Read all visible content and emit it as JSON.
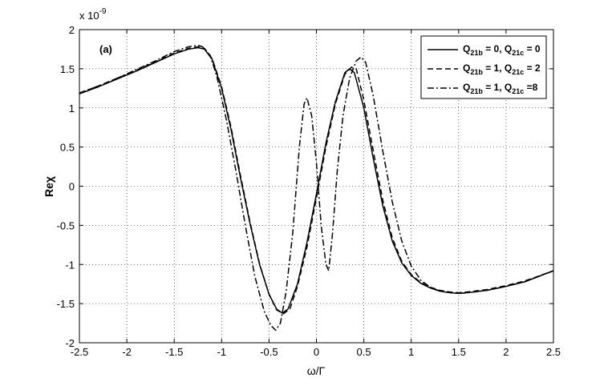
{
  "chart_data": {
    "type": "line",
    "title": "",
    "panel_label": "(a)",
    "xlabel": "ω/Γ",
    "ylabel": "Reχ",
    "y_multiplier": "x 10",
    "y_exponent": "-9",
    "xlim": [
      -2.5,
      2.5
    ],
    "ylim": [
      -2,
      2
    ],
    "xticks": [
      -2.5,
      -2,
      -1.5,
      -1,
      -0.5,
      0,
      0.5,
      1,
      1.5,
      2,
      2.5
    ],
    "yticks": [
      -2,
      -1.5,
      -1,
      -0.5,
      0,
      0.5,
      1,
      1.5,
      2
    ],
    "xtick_labels": [
      "-2.5",
      "-2",
      "-1.5",
      "-1",
      "-0.5",
      "0",
      "0.5",
      "1",
      "1.5",
      "2",
      "2.5"
    ],
    "ytick_labels": [
      "-2",
      "-1.5",
      "-1",
      "-0.5",
      "0",
      "0.5",
      "1",
      "1.5",
      "2"
    ],
    "grid": true,
    "legend_placement": "top-right",
    "series": [
      {
        "name": "Q21b = 0, Q21c = 0",
        "legend": {
          "pre": "Q",
          "sub1": "21b",
          "mid": " = 0, Q",
          "sub2": "21c",
          "post": " = 0"
        },
        "style": "solid",
        "color": "#000000",
        "x": [
          -2.5,
          -2.3,
          -2.1,
          -1.9,
          -1.7,
          -1.5,
          -1.35,
          -1.25,
          -1.18,
          -1.1,
          -1.0,
          -0.9,
          -0.8,
          -0.7,
          -0.6,
          -0.5,
          -0.42,
          -0.36,
          -0.3,
          -0.2,
          -0.1,
          0.0,
          0.1,
          0.2,
          0.3,
          0.35,
          0.4,
          0.5,
          0.6,
          0.7,
          0.8,
          0.9,
          1.0,
          1.1,
          1.2,
          1.3,
          1.4,
          1.5,
          1.6,
          1.8,
          2.0,
          2.2,
          2.5
        ],
        "y": [
          1.18,
          1.27,
          1.37,
          1.47,
          1.58,
          1.69,
          1.75,
          1.77,
          1.75,
          1.62,
          1.25,
          0.72,
          0.1,
          -0.48,
          -1.0,
          -1.38,
          -1.57,
          -1.62,
          -1.57,
          -1.25,
          -0.72,
          -0.1,
          0.55,
          1.08,
          1.45,
          1.5,
          1.45,
          1.0,
          0.35,
          -0.25,
          -0.7,
          -0.98,
          -1.14,
          -1.24,
          -1.3,
          -1.34,
          -1.36,
          -1.37,
          -1.36,
          -1.33,
          -1.28,
          -1.22,
          -1.08
        ]
      },
      {
        "name": "Q21b = 1, Q21c = 2",
        "legend": {
          "pre": "Q",
          "sub1": "21b",
          "mid": " = 1, Q",
          "sub2": "21c",
          "post": " = 2"
        },
        "style": "dashed",
        "color": "#000000",
        "x": [
          -2.5,
          -2.3,
          -2.1,
          -1.9,
          -1.7,
          -1.5,
          -1.35,
          -1.25,
          -1.18,
          -1.1,
          -1.0,
          -0.9,
          -0.8,
          -0.7,
          -0.6,
          -0.5,
          -0.42,
          -0.35,
          -0.28,
          -0.2,
          -0.1,
          0.0,
          0.1,
          0.2,
          0.3,
          0.37,
          0.42,
          0.5,
          0.6,
          0.7,
          0.8,
          0.9,
          1.0,
          1.1,
          1.2,
          1.3,
          1.4,
          1.5,
          1.6,
          1.8,
          2.0,
          2.2,
          2.5
        ],
        "y": [
          1.19,
          1.28,
          1.38,
          1.48,
          1.59,
          1.7,
          1.76,
          1.78,
          1.76,
          1.63,
          1.27,
          0.75,
          0.13,
          -0.46,
          -0.99,
          -1.38,
          -1.58,
          -1.63,
          -1.57,
          -1.28,
          -0.78,
          -0.15,
          0.5,
          1.05,
          1.43,
          1.52,
          1.5,
          1.1,
          0.45,
          -0.18,
          -0.66,
          -0.96,
          -1.13,
          -1.23,
          -1.29,
          -1.33,
          -1.35,
          -1.36,
          -1.35,
          -1.32,
          -1.27,
          -1.21,
          -1.08
        ]
      },
      {
        "name": "Q21b = 1, Q21c =8",
        "legend": {
          "pre": "Q",
          "sub1": "21b",
          "mid": " = 1, Q",
          "sub2": "21c",
          "post": " =8"
        },
        "style": "dashdot",
        "color": "#000000",
        "x": [
          -2.5,
          -2.3,
          -2.1,
          -1.9,
          -1.7,
          -1.5,
          -1.35,
          -1.25,
          -1.2,
          -1.12,
          -1.05,
          -0.95,
          -0.85,
          -0.75,
          -0.65,
          -0.55,
          -0.48,
          -0.43,
          -0.38,
          -0.32,
          -0.25,
          -0.18,
          -0.13,
          -0.1,
          -0.05,
          0.0,
          0.05,
          0.1,
          0.13,
          0.17,
          0.22,
          0.28,
          0.35,
          0.42,
          0.47,
          0.52,
          0.6,
          0.7,
          0.8,
          0.9,
          1.0,
          1.1,
          1.2,
          1.3,
          1.4,
          1.5,
          1.6,
          1.8,
          2.0,
          2.2,
          2.5
        ],
        "y": [
          1.19,
          1.28,
          1.38,
          1.49,
          1.6,
          1.72,
          1.78,
          1.8,
          1.78,
          1.67,
          1.4,
          0.85,
          0.2,
          -0.5,
          -1.15,
          -1.6,
          -1.78,
          -1.84,
          -1.75,
          -1.35,
          -0.6,
          0.5,
          1.05,
          1.13,
          0.9,
          0.3,
          -0.5,
          -1.0,
          -1.08,
          -0.6,
          0.2,
          0.9,
          1.38,
          1.6,
          1.65,
          1.58,
          1.15,
          0.45,
          -0.2,
          -0.7,
          -1.02,
          -1.2,
          -1.29,
          -1.34,
          -1.36,
          -1.37,
          -1.36,
          -1.33,
          -1.28,
          -1.22,
          -1.08
        ]
      }
    ]
  }
}
